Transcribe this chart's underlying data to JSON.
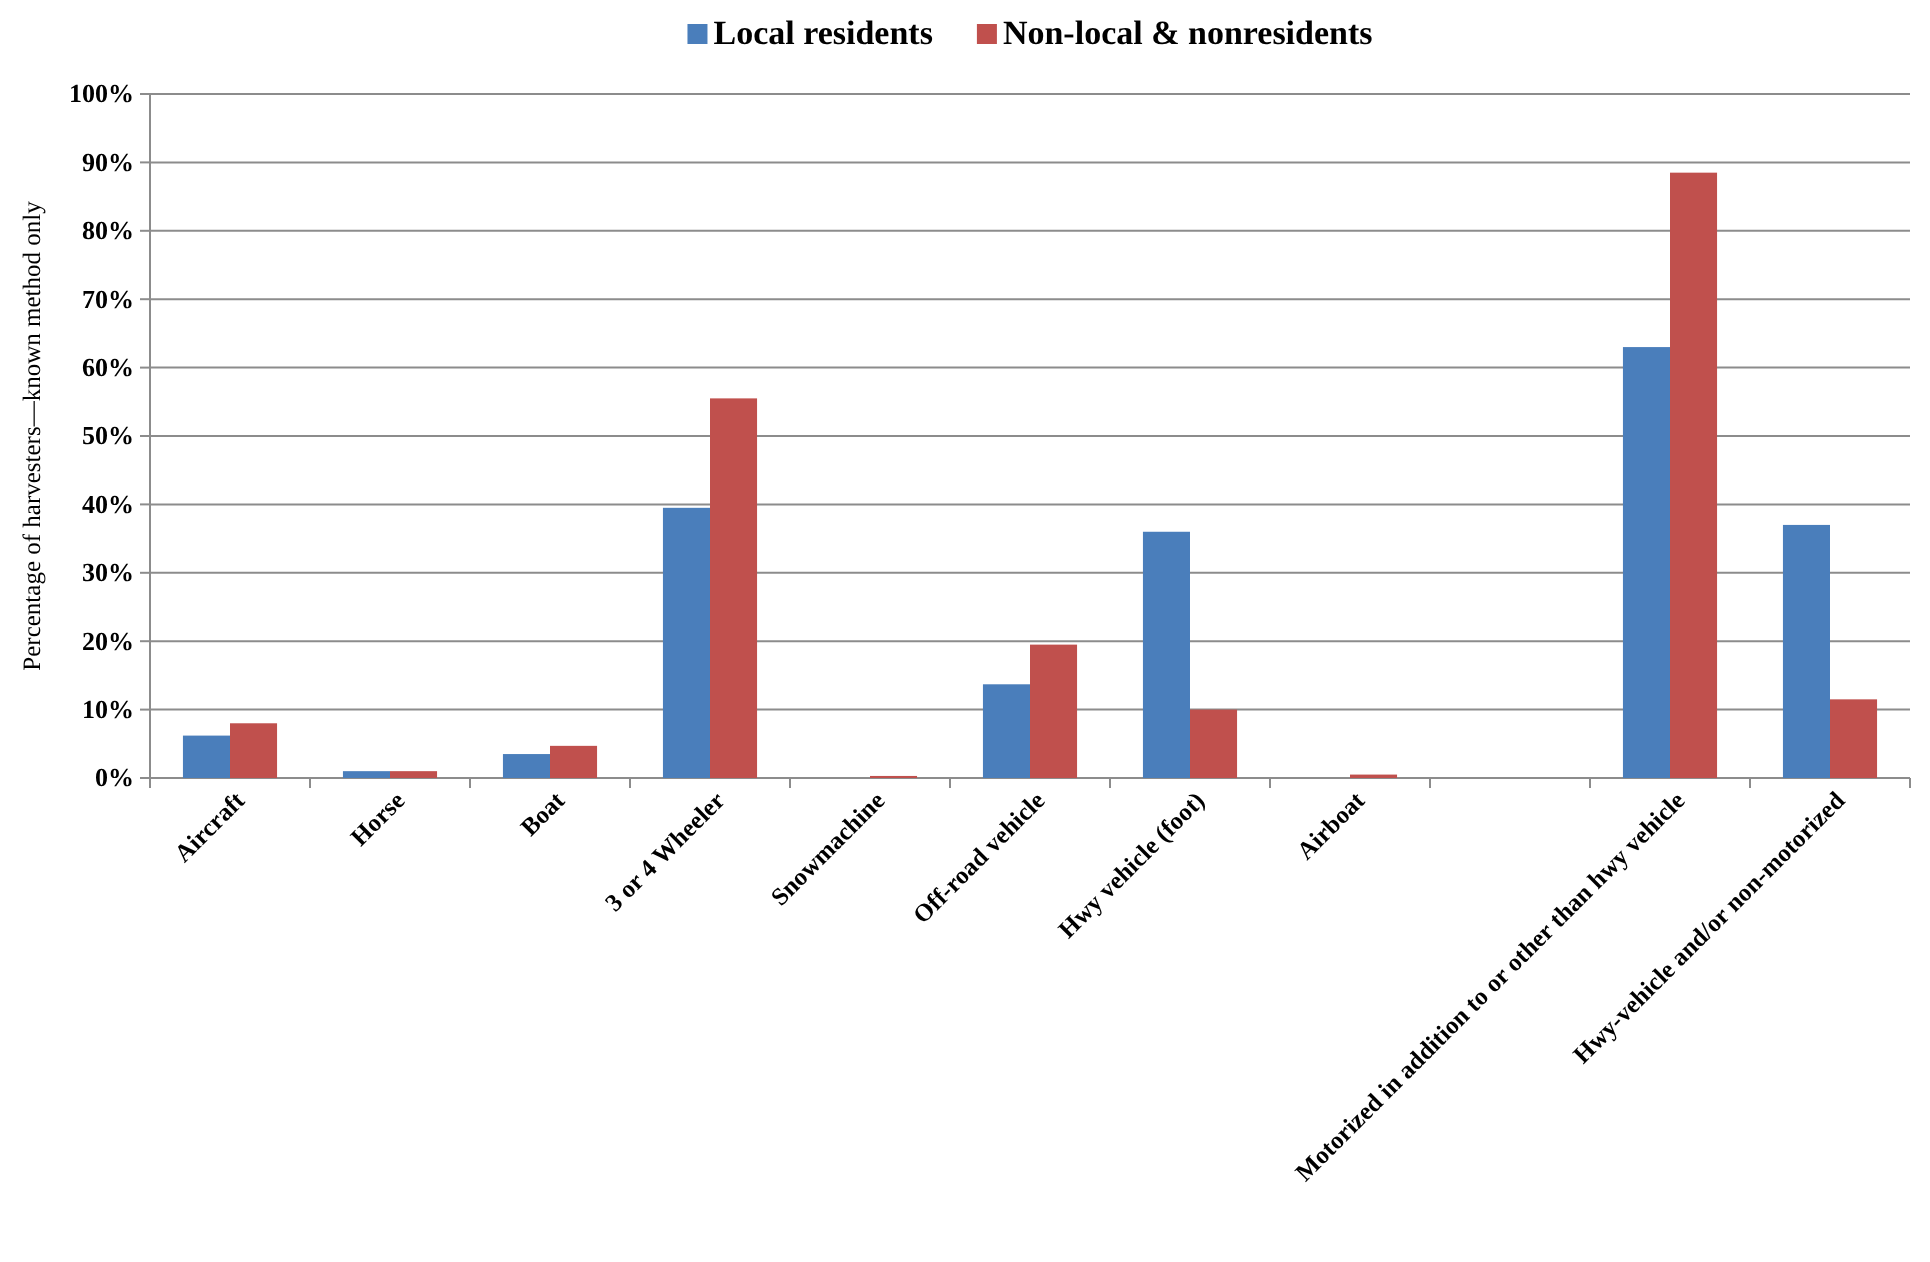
{
  "chart_data": {
    "type": "bar",
    "ylabel": "Percentage of harvesters—known method only",
    "categories": [
      "Aircraft",
      "Horse",
      "Boat",
      "3 or 4 Wheeler",
      "Snowmachine",
      "Off-road vehicle",
      "Hwy vehicle (foot)",
      "Airboat",
      null,
      "Motorized in addition to or other than hwy vehicle",
      "Hwy-vehicle and/or non-motorized"
    ],
    "series": [
      {
        "name": "Local residents",
        "color": "#4a7ebb",
        "values": [
          6.2,
          1,
          3.5,
          39.5,
          0,
          13.7,
          36,
          0,
          0,
          63,
          37
        ]
      },
      {
        "name": "Non-local & nonresidents",
        "color": "#c0504d",
        "values": [
          8,
          1,
          4.7,
          55.5,
          0.3,
          19.5,
          10,
          0.5,
          0,
          88.5,
          11.5
        ]
      }
    ],
    "ylim": [
      0,
      100
    ],
    "yticks": [
      {
        "value": 0,
        "label": "0%"
      },
      {
        "value": 10,
        "label": "10%"
      },
      {
        "value": 20,
        "label": "20%"
      },
      {
        "value": 30,
        "label": "30%"
      },
      {
        "value": 40,
        "label": "40%"
      },
      {
        "value": 50,
        "label": "50%"
      },
      {
        "value": 60,
        "label": "60%"
      },
      {
        "value": 70,
        "label": "70%"
      },
      {
        "value": 80,
        "label": "80%"
      },
      {
        "value": 90,
        "label": "90%"
      },
      {
        "value": 100,
        "label": "100%"
      }
    ],
    "grid": "y",
    "legend": "top"
  }
}
